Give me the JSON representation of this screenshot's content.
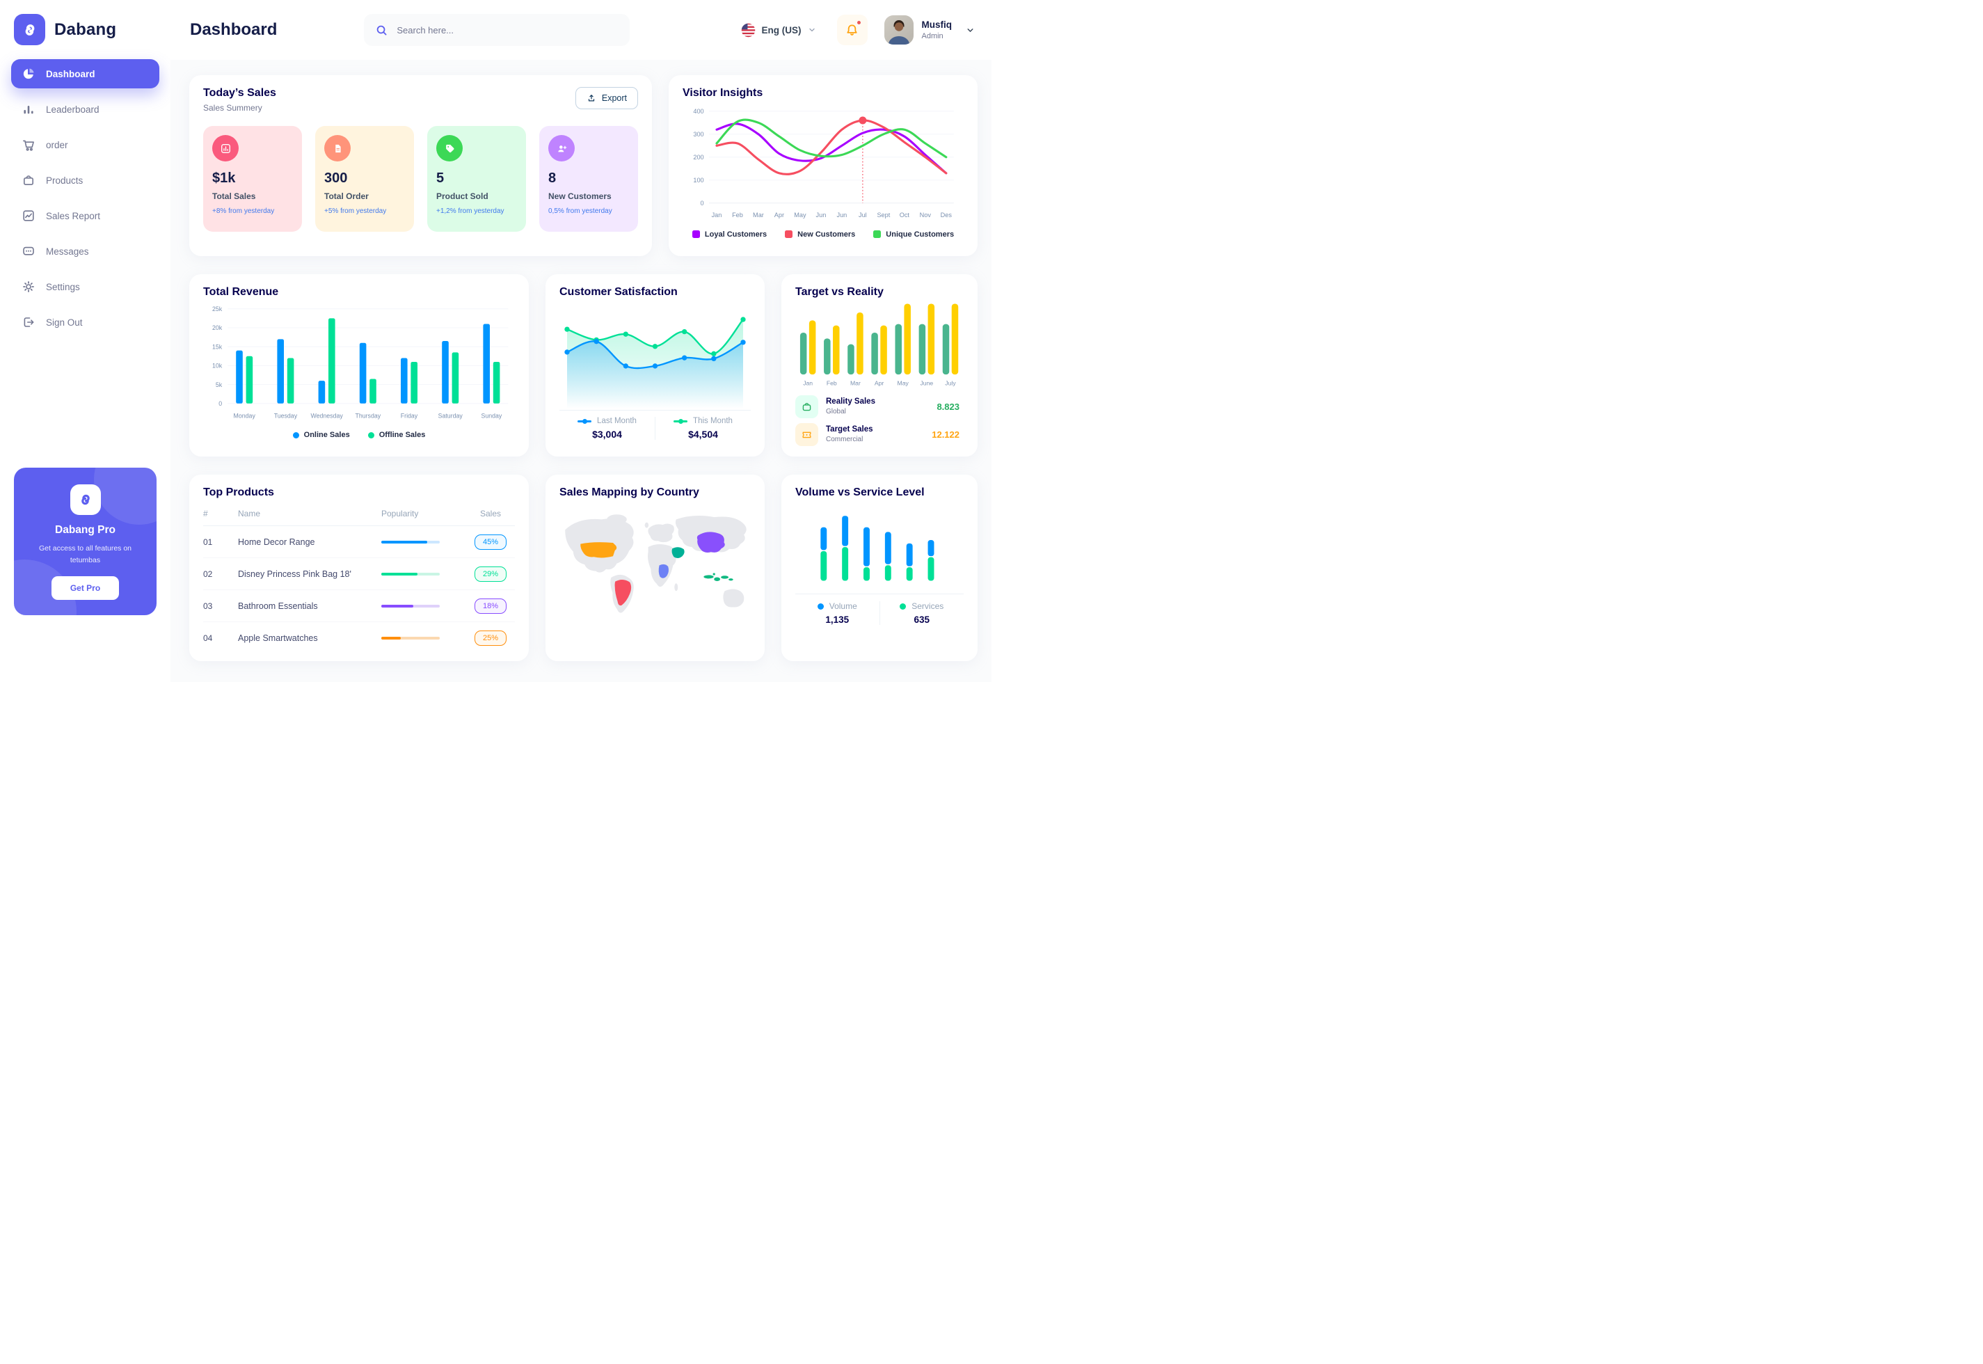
{
  "brand": {
    "name": "Dabang"
  },
  "header": {
    "title": "Dashboard",
    "search_placeholder": "Search here...",
    "language": "Eng (US)",
    "user_name": "Musfiq",
    "user_role": "Admin"
  },
  "sidebar": {
    "items": [
      {
        "label": "Dashboard",
        "active": true
      },
      {
        "label": "Leaderboard"
      },
      {
        "label": "order"
      },
      {
        "label": "Products"
      },
      {
        "label": "Sales Report"
      },
      {
        "label": "Messages"
      },
      {
        "label": "Settings"
      },
      {
        "label": "Sign Out"
      }
    ],
    "pro": {
      "title": "Dabang Pro",
      "subtitle": "Get access to all features on tetumbas",
      "button": "Get Pro"
    }
  },
  "today_sales": {
    "title": "Today’s Sales",
    "subtitle": "Sales Summery",
    "export_label": "Export",
    "cards": [
      {
        "value": "$1k",
        "label": "Total Sales",
        "note": "+8% from yesterday",
        "bg": "#FFE2E5",
        "icon_bg": "#FA5A7D",
        "icon": "bar-chart-icon"
      },
      {
        "value": "300",
        "label": "Total Order",
        "note": "+5% from yesterday",
        "bg": "#FFF4DE",
        "icon_bg": "#FF947A",
        "icon": "file-icon"
      },
      {
        "value": "5",
        "label": "Product Sold",
        "note": "+1,2% from yesterday",
        "bg": "#DCFCE7",
        "icon_bg": "#3CD856",
        "icon": "tag-icon"
      },
      {
        "value": "8",
        "label": "New Customers",
        "note": "0,5% from yesterday",
        "bg": "#F3E8FF",
        "icon_bg": "#BF83FF",
        "icon": "user-plus-icon"
      }
    ]
  },
  "chart_data": [
    {
      "id": "visitor_insights",
      "type": "line",
      "title": "Visitor Insights",
      "x": [
        "Jan",
        "Feb",
        "Mar",
        "Apr",
        "May",
        "Jun",
        "Jun",
        "Jul",
        "Sept",
        "Oct",
        "Nov",
        "Des"
      ],
      "ylim": [
        0,
        400
      ],
      "yticks": [
        0,
        100,
        200,
        300,
        400
      ],
      "grid": true,
      "legend_position": "bottom",
      "series": [
        {
          "name": "Loyal Customers",
          "color": "#A700FF",
          "values": [
            320,
            345,
            300,
            215,
            185,
            195,
            250,
            305,
            320,
            290,
            210,
            130
          ]
        },
        {
          "name": "New Customers",
          "color": "#F64E60",
          "values": [
            250,
            260,
            190,
            130,
            140,
            220,
            320,
            360,
            330,
            265,
            200,
            130
          ]
        },
        {
          "name": "Unique Customers",
          "color": "#3CD856",
          "values": [
            260,
            355,
            350,
            290,
            230,
            205,
            210,
            250,
            300,
            320,
            260,
            200
          ]
        }
      ],
      "marker": {
        "x_index": 7,
        "x_label": "Jul",
        "series": "New Customers",
        "value": 360
      }
    },
    {
      "id": "total_revenue",
      "type": "bar",
      "title": "Total Revenue",
      "categories": [
        "Monday",
        "Tuesday",
        "Wednesday",
        "Thursday",
        "Friday",
        "Saturday",
        "Sunday"
      ],
      "ylim": [
        0,
        25000
      ],
      "ytick_labels": [
        "0",
        "5k",
        "10k",
        "15k",
        "20k",
        "25k"
      ],
      "grid": true,
      "legend_position": "bottom",
      "series": [
        {
          "name": "Online Sales",
          "color": "#0095FF",
          "values": [
            14000,
            17000,
            6000,
            16000,
            12000,
            16500,
            21000
          ]
        },
        {
          "name": "Offline Sales",
          "color": "#00E096",
          "values": [
            12500,
            12000,
            22500,
            6500,
            11000,
            13500,
            11000
          ]
        }
      ]
    },
    {
      "id": "customer_satisfaction",
      "type": "area",
      "title": "Customer Satisfaction",
      "ylim": [
        0,
        100
      ],
      "grid": false,
      "legend_position": "bottom",
      "series": [
        {
          "name": "Last Month",
          "color": "#0095FF",
          "total": "$3,004",
          "values": [
            55,
            68,
            38,
            38,
            48,
            47,
            67
          ]
        },
        {
          "name": "This Month",
          "color": "#00E096",
          "total": "$4,504",
          "values": [
            83,
            70,
            77,
            62,
            80,
            53,
            95
          ]
        }
      ]
    },
    {
      "id": "target_vs_reality",
      "type": "bar",
      "title": "Target vs Reality",
      "categories": [
        "Jan",
        "Feb",
        "Mar",
        "Apr",
        "May",
        "June",
        "July"
      ],
      "ylim": [
        0,
        100
      ],
      "grid": false,
      "legend_position": "bottom",
      "series": [
        {
          "name": "Reality Sales",
          "color": "#4AB58E",
          "values": [
            58,
            50,
            42,
            58,
            70,
            70,
            70
          ]
        },
        {
          "name": "Target Sales",
          "color": "#FFCF00",
          "values": [
            75,
            68,
            86,
            68,
            98,
            98,
            98
          ]
        }
      ],
      "legend": [
        {
          "title": "Reality Sales",
          "subtitle": "Global",
          "value": "8.823",
          "value_color": "#27AE60",
          "icon_bg": "#E2FFF3",
          "icon": "shopping-bag-icon"
        },
        {
          "title": "Target Sales",
          "subtitle": "Commercial",
          "value": "12.122",
          "value_color": "#FFA412",
          "icon_bg": "#FFF4DE",
          "icon": "ticket-icon"
        }
      ]
    },
    {
      "id": "top_products",
      "type": "table",
      "title": "Top Products",
      "columns": [
        "#",
        "Name",
        "Popularity",
        "Sales"
      ],
      "rows": [
        {
          "num": "01",
          "name": "Home Decor Range",
          "bar_percent": 78,
          "sales": "45%",
          "color": "#0095FF",
          "track": "#CDE7FF",
          "badge_bg": "#F0F9FF"
        },
        {
          "num": "02",
          "name": "Disney Princess Pink Bag 18'",
          "bar_percent": 62,
          "sales": "29%",
          "color": "#00E096",
          "track": "#C9F5E4",
          "badge_bg": "#F0FDF7"
        },
        {
          "num": "03",
          "name": "Bathroom Essentials",
          "bar_percent": 55,
          "sales": "18%",
          "color": "#884DFF",
          "track": "#DFD1FA",
          "badge_bg": "#F7F3FF"
        },
        {
          "num": "04",
          "name": "Apple Smartwatches",
          "bar_percent": 33,
          "sales": "25%",
          "color": "#FF8F0D",
          "track": "#FBD8B0",
          "badge_bg": "#FFF8EE"
        }
      ]
    },
    {
      "id": "sales_map",
      "type": "map",
      "title": "Sales Mapping by Country",
      "countries": [
        {
          "name": "United States",
          "color": "#FFA412"
        },
        {
          "name": "Brazil",
          "color": "#F64E60"
        },
        {
          "name": "DR Congo",
          "color": "#6D81F5"
        },
        {
          "name": "Saudi Arabia",
          "color": "#00B096"
        },
        {
          "name": "China",
          "color": "#8950FC"
        },
        {
          "name": "Indonesia",
          "color": "#10B981"
        }
      ]
    },
    {
      "id": "volume_service",
      "type": "stacked-bar",
      "title": "Volume vs Service Level",
      "categories": [
        "1",
        "2",
        "3",
        "4",
        "5",
        "6"
      ],
      "grid": false,
      "legend_position": "bottom",
      "series": [
        {
          "name": "Volume",
          "color": "#0095FF",
          "total": "1,135",
          "values": [
            34,
            45,
            58,
            48,
            34,
            24
          ]
        },
        {
          "name": "Services",
          "color": "#00E096",
          "total": "635",
          "values": [
            44,
            50,
            20,
            23,
            20,
            35
          ]
        }
      ]
    }
  ]
}
